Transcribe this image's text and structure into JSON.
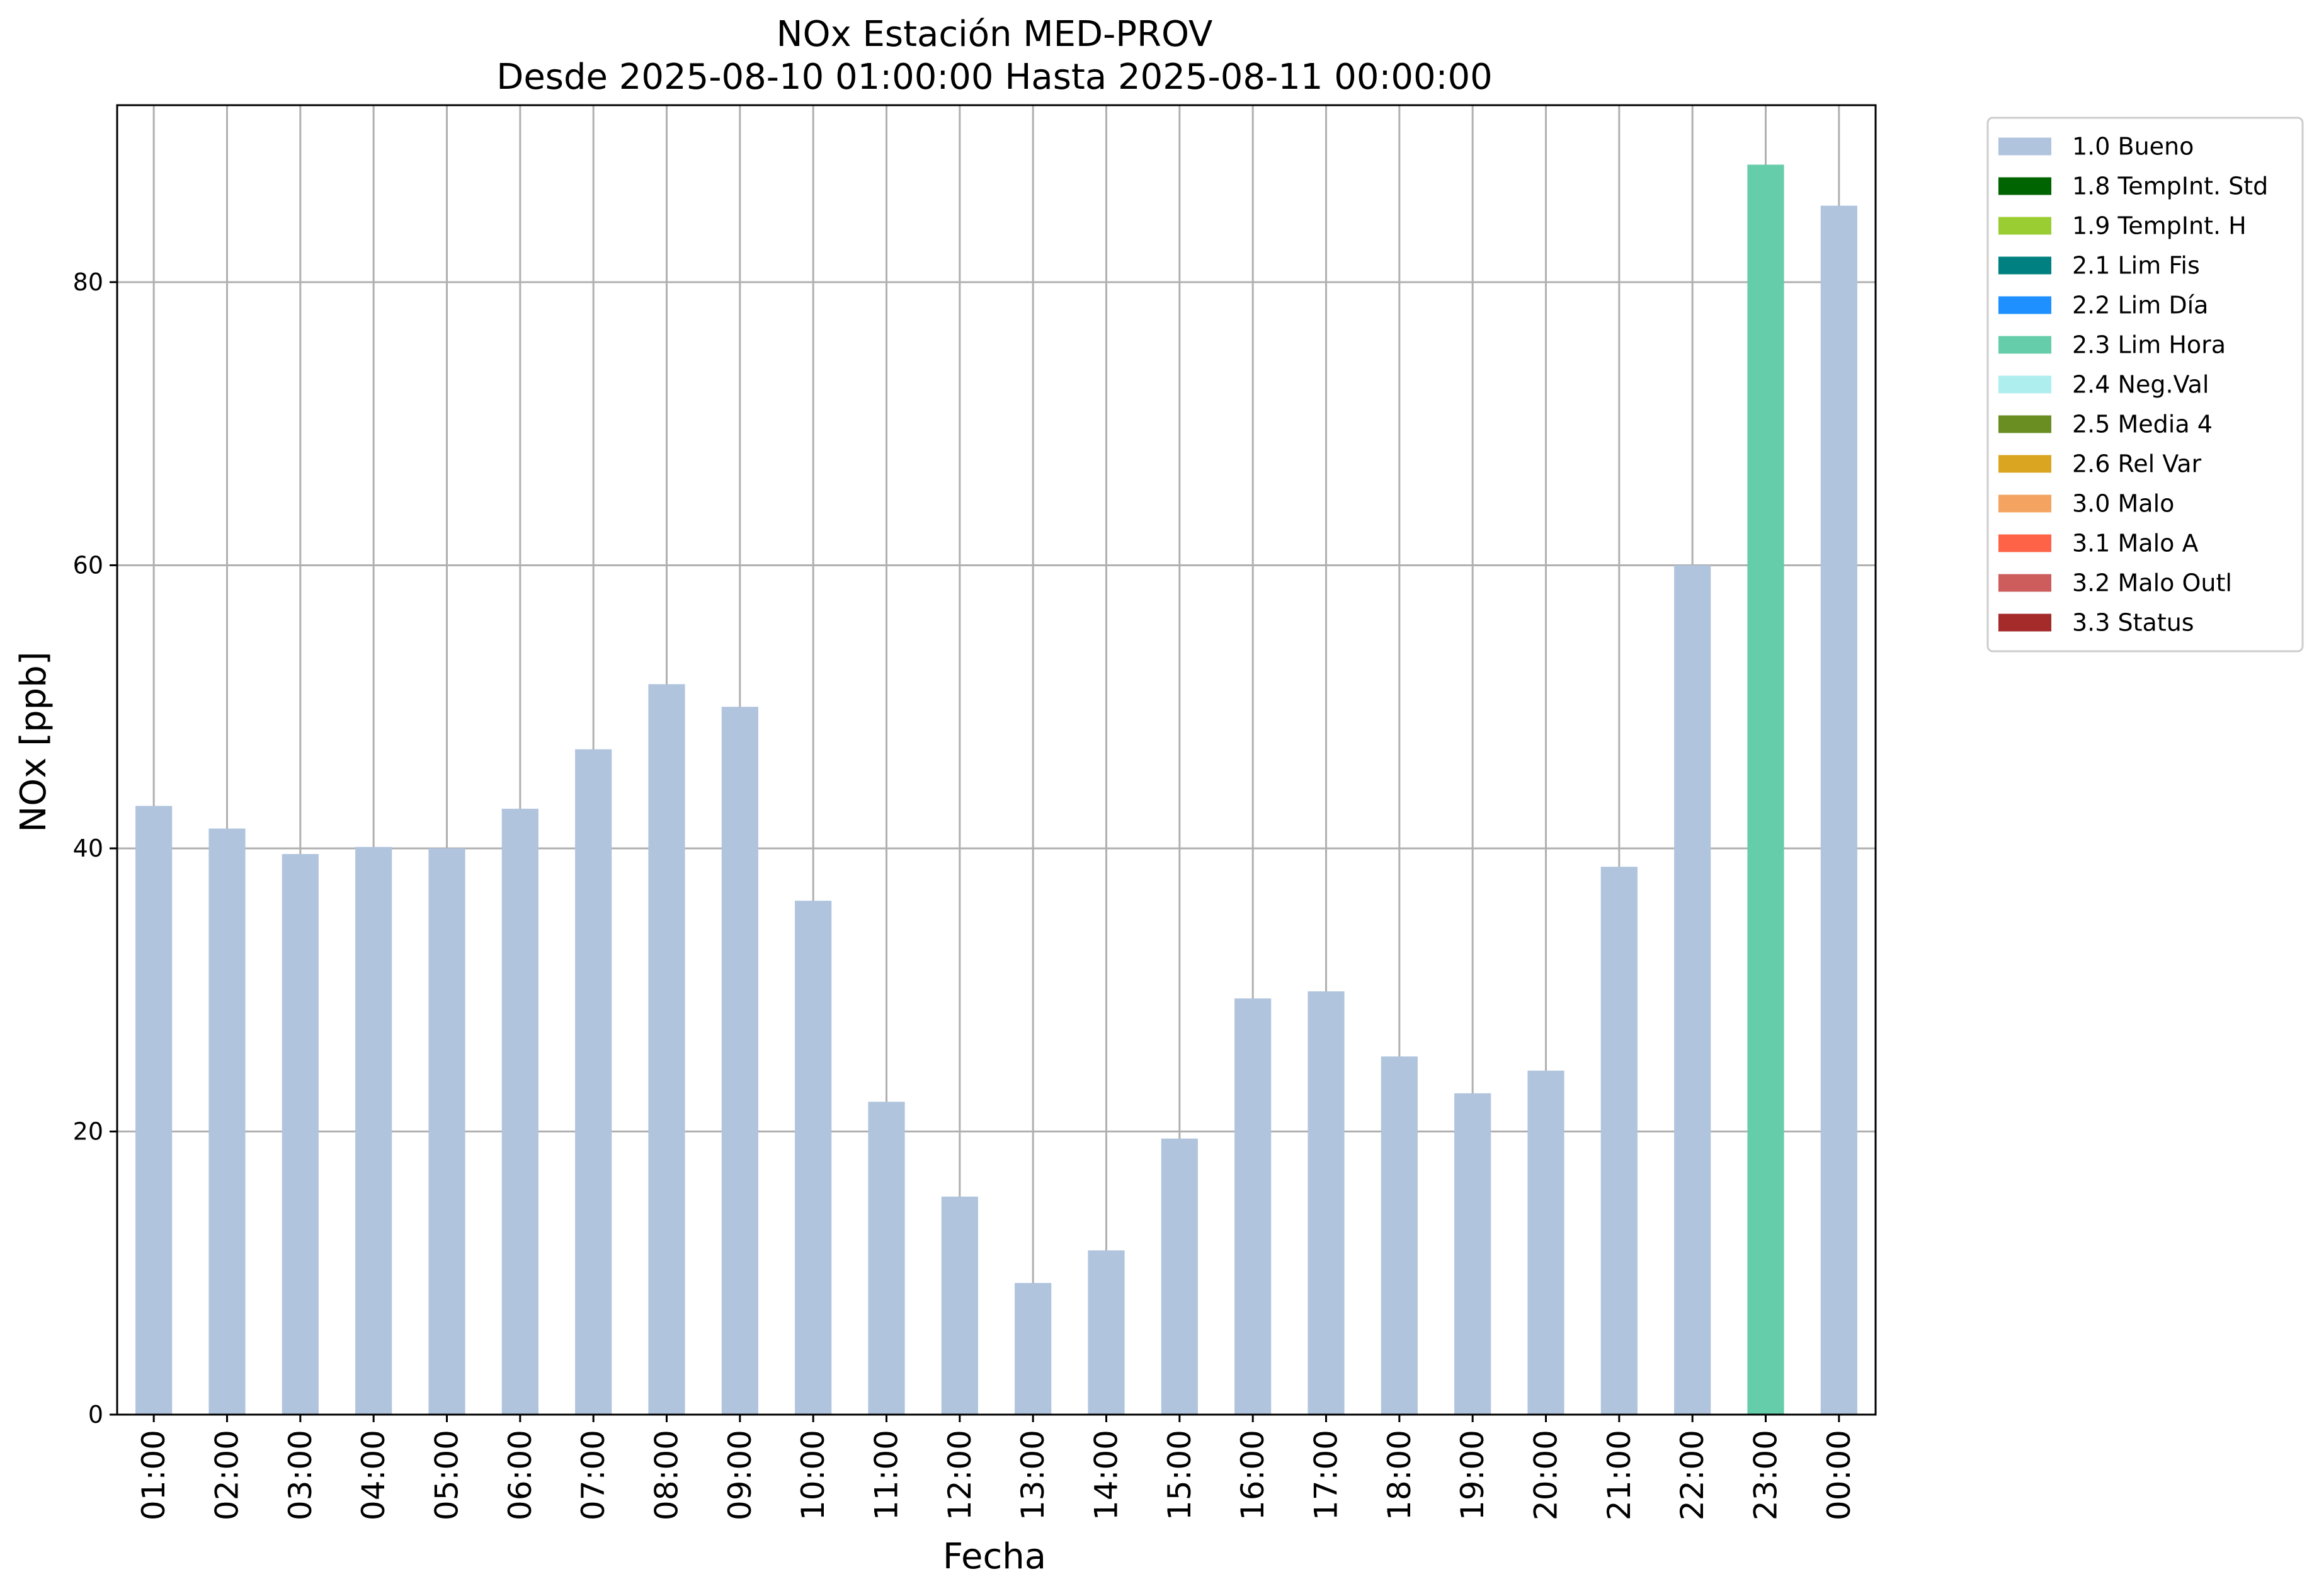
{
  "chart_data": {
    "type": "bar",
    "title": "NOx Estación MED-PROV",
    "subtitle": "Desde 2025-08-10 01:00:00 Hasta 2025-08-11 00:00:00",
    "xlabel": "Fecha",
    "ylabel": "NOx [ppb]",
    "ylim": [
      0,
      92.5
    ],
    "yticks": [
      0,
      20,
      40,
      60,
      80
    ],
    "grid": true,
    "legend_position": "outside-top-right",
    "categories": [
      "01:00",
      "02:00",
      "03:00",
      "04:00",
      "05:00",
      "06:00",
      "07:00",
      "08:00",
      "09:00",
      "10:00",
      "11:00",
      "12:00",
      "13:00",
      "14:00",
      "15:00",
      "16:00",
      "17:00",
      "18:00",
      "19:00",
      "20:00",
      "21:00",
      "22:00",
      "23:00",
      "00:00"
    ],
    "values": [
      43.0,
      41.4,
      39.6,
      40.1,
      40.0,
      42.8,
      47.0,
      51.6,
      50.0,
      36.3,
      22.1,
      15.4,
      9.3,
      11.6,
      19.5,
      29.4,
      29.9,
      25.3,
      22.7,
      24.3,
      38.7,
      60.0,
      88.3,
      85.4
    ],
    "flags": [
      "1.0 Bueno",
      "1.0 Bueno",
      "1.0 Bueno",
      "1.0 Bueno",
      "1.0 Bueno",
      "1.0 Bueno",
      "1.0 Bueno",
      "1.0 Bueno",
      "1.0 Bueno",
      "1.0 Bueno",
      "1.0 Bueno",
      "1.0 Bueno",
      "1.0 Bueno",
      "1.0 Bueno",
      "1.0 Bueno",
      "1.0 Bueno",
      "1.0 Bueno",
      "1.0 Bueno",
      "1.0 Bueno",
      "1.0 Bueno",
      "1.0 Bueno",
      "1.0 Bueno",
      "2.3 Lim Hora",
      "1.0 Bueno"
    ],
    "legend": [
      {
        "label": "1.0 Bueno",
        "color": "#b0c4de"
      },
      {
        "label": "1.8 TempInt. Std",
        "color": "#006400"
      },
      {
        "label": "1.9 TempInt. H",
        "color": "#9acd32"
      },
      {
        "label": "2.1 Lim Fis",
        "color": "#008080"
      },
      {
        "label": "2.2 Lim Día",
        "color": "#1e90ff"
      },
      {
        "label": "2.3 Lim Hora",
        "color": "#66cdaa"
      },
      {
        "label": "2.4 Neg.Val",
        "color": "#afeeee"
      },
      {
        "label": "2.5 Media 4",
        "color": "#6b8e23"
      },
      {
        "label": "2.6 Rel Var",
        "color": "#daa520"
      },
      {
        "label": "3.0 Malo",
        "color": "#f4a460"
      },
      {
        "label": "3.1 Malo A",
        "color": "#ff6347"
      },
      {
        "label": "3.2 Malo Outl",
        "color": "#cd5c5c"
      },
      {
        "label": "3.3 Status",
        "color": "#a52a2a"
      }
    ]
  }
}
